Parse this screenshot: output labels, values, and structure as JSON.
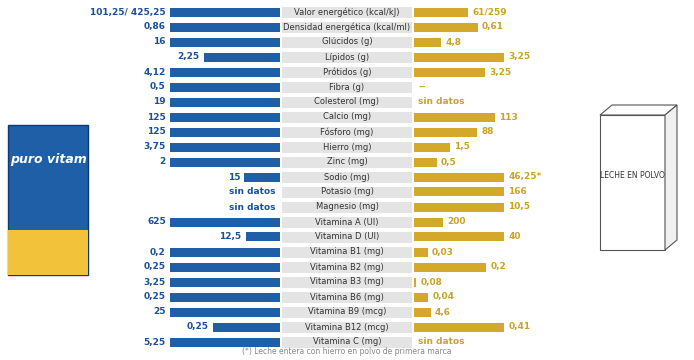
{
  "chart_data": {
    "type": "bar",
    "orientation": "horizontal",
    "data_labels": true,
    "tick_labels": false,
    "categories": [
      "Valor energético (kcal/kJ)",
      "Densidad energética (kcal/ml)",
      "Glúcidos (g)",
      "Lípidos (g)",
      "Prótidos (g)",
      "Fibra (g)",
      "Colesterol (mg)",
      "Calcio (mg)",
      "Fósforo (mg)",
      "Hierro (mg)",
      "Zinc (mg)",
      "Sodio (mg)",
      "Potasio (mg)",
      "Magnesio (mg)",
      "Vitamina A (UI)",
      "Vitamina D (UI)",
      "Vitamina B1 (mg)",
      "Vitamina B2 (mg)",
      "Vitamina B3 (mg)",
      "Vitamina B6 (mg)",
      "Vitamina B9 (mcg)",
      "Vitamina B12 (mcg)",
      "Vitamina C (mg)"
    ],
    "series": [
      {
        "name": "puro vitam",
        "color": "#1f5fa8",
        "values": [
          101.25,
          0.86,
          16,
          2.25,
          4.12,
          0.5,
          19,
          125,
          125,
          3.75,
          2,
          15,
          null,
          null,
          625,
          12.5,
          0.2,
          0.25,
          3.25,
          0.25,
          25,
          0.25,
          5.25
        ],
        "value_labels": [
          "101,25/ 425,25",
          "0,86",
          "16",
          "2,25",
          "4,12",
          "0,5",
          "19",
          "125",
          "125",
          "3,75",
          "2",
          "15",
          "sin datos",
          "sin datos",
          "625",
          "12,5",
          "0,2",
          "0,25",
          "3,25",
          "0,25",
          "25",
          "0,25",
          "5,25"
        ]
      },
      {
        "name": "LECHE EN POLVO",
        "color": "#d4a82a",
        "values": [
          61,
          0.61,
          4.8,
          3.25,
          3.25,
          null,
          null,
          113,
          88,
          1.5,
          0.5,
          46.25,
          166,
          10.5,
          200,
          40,
          0.03,
          0.2,
          0.08,
          0.04,
          4.6,
          0.41,
          null
        ],
        "value_labels": [
          "61/259",
          "0,61",
          "4,8",
          "3,25",
          "3,25",
          "--",
          "sin datos",
          "113",
          "88",
          "1,5",
          "0,5",
          "46,25*",
          "166",
          "10,5",
          "200",
          "40",
          "0,03",
          "0,2",
          "0,08",
          "0,04",
          "4,6",
          "0,41",
          "sin datos"
        ]
      }
    ],
    "footnote": "(*) Leche entera con hierro en polvo de primera marca"
  }
}
